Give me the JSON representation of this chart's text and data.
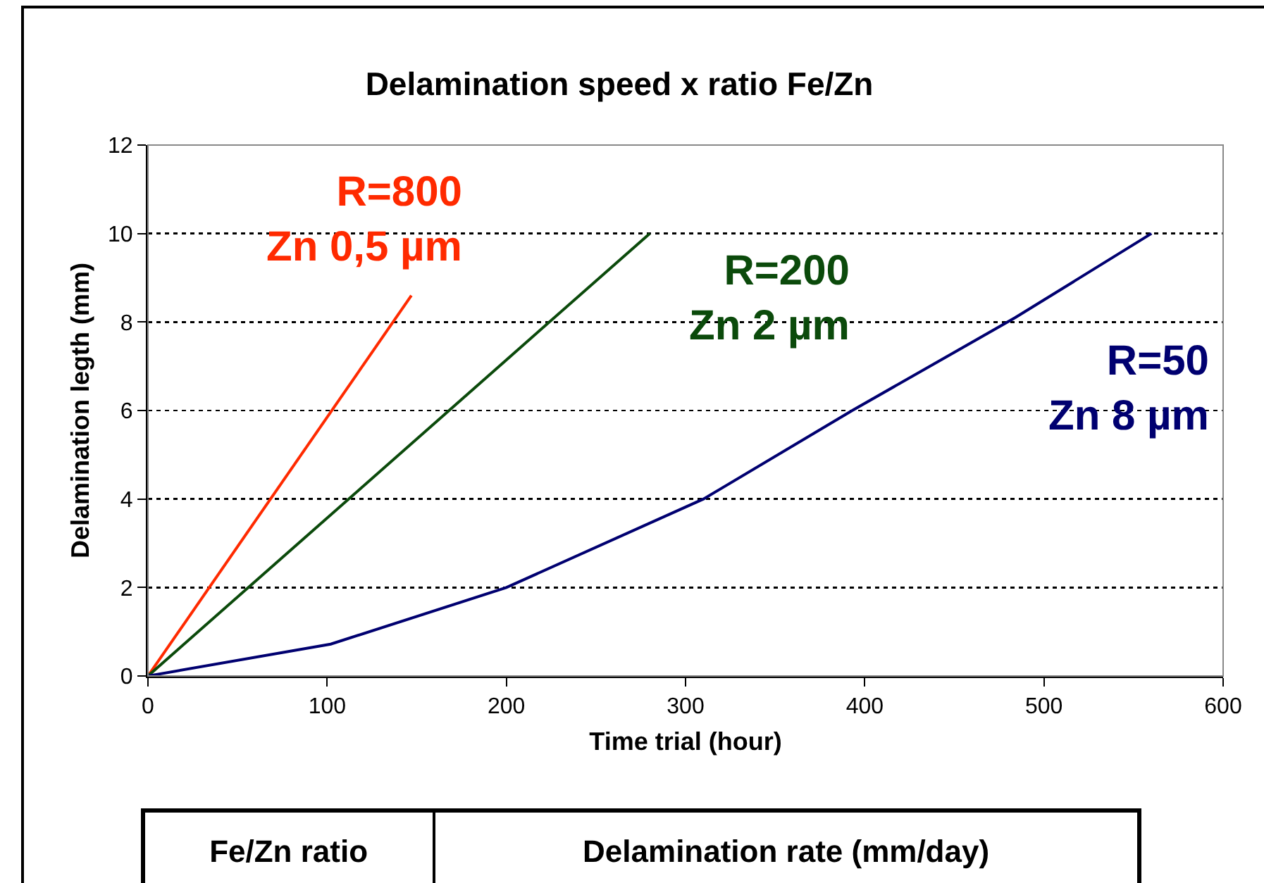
{
  "chart_data": {
    "type": "line",
    "title": "Delamination speed x ratio Fe/Zn",
    "xlabel": "Time trial (hour)",
    "ylabel": "Delamination legth (mm)",
    "series": [
      {
        "name": "R=800\nZn 0,5 µm",
        "color": "#ff2a00",
        "x": [
          0,
          147
        ],
        "values": [
          0,
          8.6
        ]
      },
      {
        "name": "R=200\nZn 2 µm",
        "color": "#0b4a0b",
        "x": [
          0,
          280
        ],
        "values": [
          0,
          10
        ]
      },
      {
        "name": "R=50\nZn 8 µm",
        "color": "#000070",
        "x": [
          0,
          102,
          200,
          310,
          393,
          484,
          560
        ],
        "values": [
          0,
          0.72,
          2,
          4,
          6,
          8.1,
          10
        ]
      }
    ],
    "xlim": [
      0,
      600
    ],
    "xticks": [
      0,
      100,
      200,
      300,
      400,
      500,
      600
    ],
    "ylim": [
      0,
      12
    ],
    "yticks": [
      0,
      2,
      4,
      6,
      8,
      10,
      12
    ],
    "grid": "y",
    "legend": false,
    "marker": "none",
    "line_style": "solid",
    "annotations": [
      "Fe/Zn ratio",
      "Delamination rate (mm/day)"
    ]
  }
}
